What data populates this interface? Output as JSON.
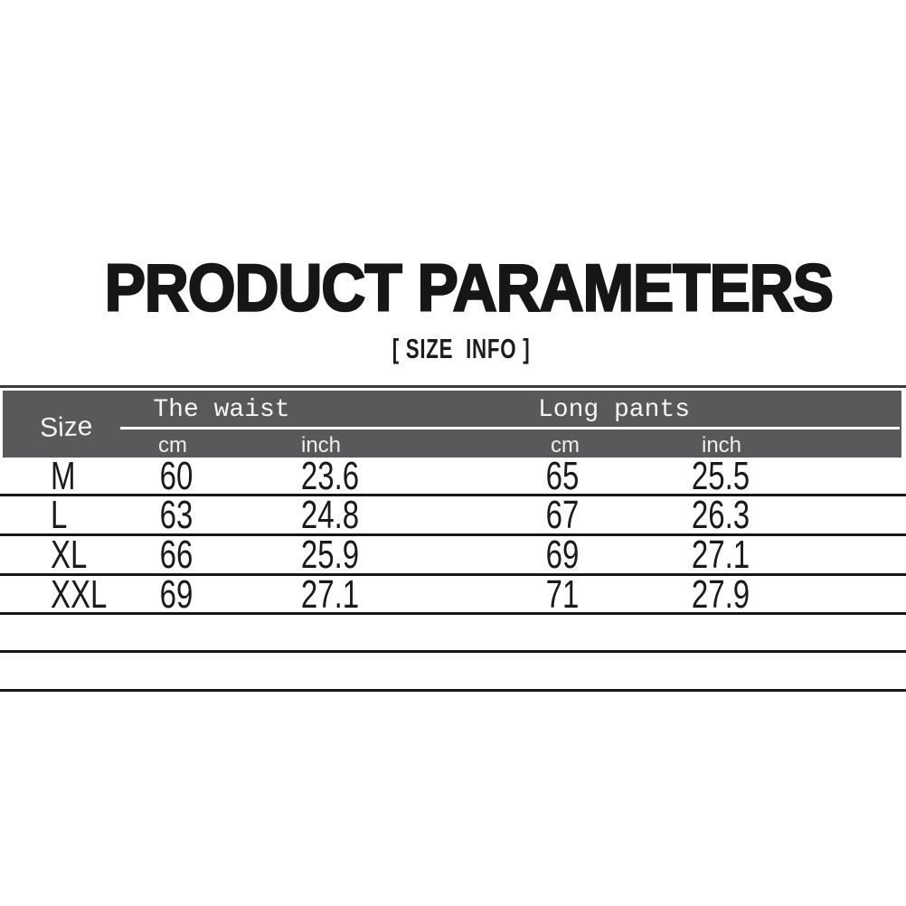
{
  "title": "PRODUCT PARAMETERS",
  "subtitle": "[ SIZE  INFO ]",
  "table": {
    "corner_label": "Size",
    "groups": [
      {
        "label": "The waist",
        "sub": [
          "cm",
          "inch"
        ]
      },
      {
        "label": "Long pants",
        "sub": [
          "cm",
          "inch"
        ]
      }
    ],
    "rows": [
      {
        "size": "M",
        "waist_cm": "60",
        "waist_inch": "23.6",
        "pants_cm": "65",
        "pants_inch": "25.5"
      },
      {
        "size": "L",
        "waist_cm": "63",
        "waist_inch": "24.8",
        "pants_cm": "67",
        "pants_inch": "26.3"
      },
      {
        "size": "XL",
        "waist_cm": "66",
        "waist_inch": "25.9",
        "pants_cm": "69",
        "pants_inch": "27.1"
      },
      {
        "size": "XXL",
        "waist_cm": "69",
        "waist_inch": "27.1",
        "pants_cm": "71",
        "pants_inch": "27.9"
      }
    ],
    "empty_rows": 2,
    "colors": {
      "header_bg": "#59595b",
      "header_text": "#f5f5f5",
      "line": "#161616",
      "text": "#1a1a1a",
      "background": "#ffffff"
    }
  },
  "chart_data": {
    "type": "table",
    "title": "PRODUCT PARAMETERS",
    "subtitle": "[ SIZE INFO ]",
    "column_groups": [
      "The waist",
      "Long pants"
    ],
    "columns": [
      "Size",
      "The waist cm",
      "The waist inch",
      "Long pants cm",
      "Long pants inch"
    ],
    "rows": [
      [
        "M",
        60,
        23.6,
        65,
        25.5
      ],
      [
        "L",
        63,
        24.8,
        67,
        26.3
      ],
      [
        "XL",
        66,
        25.9,
        69,
        27.1
      ],
      [
        "XXL",
        69,
        27.1,
        71,
        27.9
      ]
    ]
  }
}
